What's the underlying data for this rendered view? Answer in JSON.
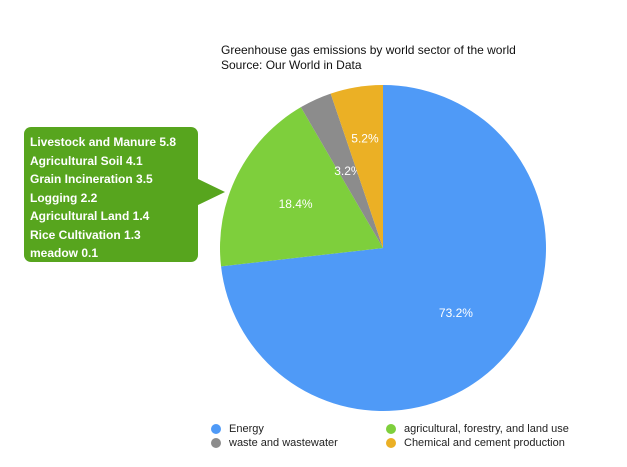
{
  "chart_data": {
    "type": "pie",
    "title": "Greenhouse gas emissions by world sector of the world",
    "subtitle": "Source: Our World in Data",
    "slices": [
      {
        "name": "Energy",
        "value": 73.2,
        "label": "73.2%",
        "color": "#4f9af7"
      },
      {
        "name": "agricultural, forestry, and land use",
        "value": 18.4,
        "label": "18.4%",
        "color": "#7ecf3c"
      },
      {
        "name": "waste and wastewater",
        "value": 3.2,
        "label": "3.2%",
        "color": "#8c8c8c"
      },
      {
        "name": "Chemical and cement production",
        "value": 5.2,
        "label": "5.2%",
        "color": "#ebb025"
      }
    ],
    "legend_placement": "bottom",
    "annotation": {
      "target": "agricultural, forestry, and land use",
      "items": [
        "Livestock and Manure 5.8",
        "Agricultural Soil 4.1",
        "Grain Incineration 3.5",
        "Logging 2.2",
        "Agricultural Land 1.4",
        "Rice Cultivation 1.3",
        "meadow 0.1"
      ],
      "color": "#57a51e"
    }
  }
}
